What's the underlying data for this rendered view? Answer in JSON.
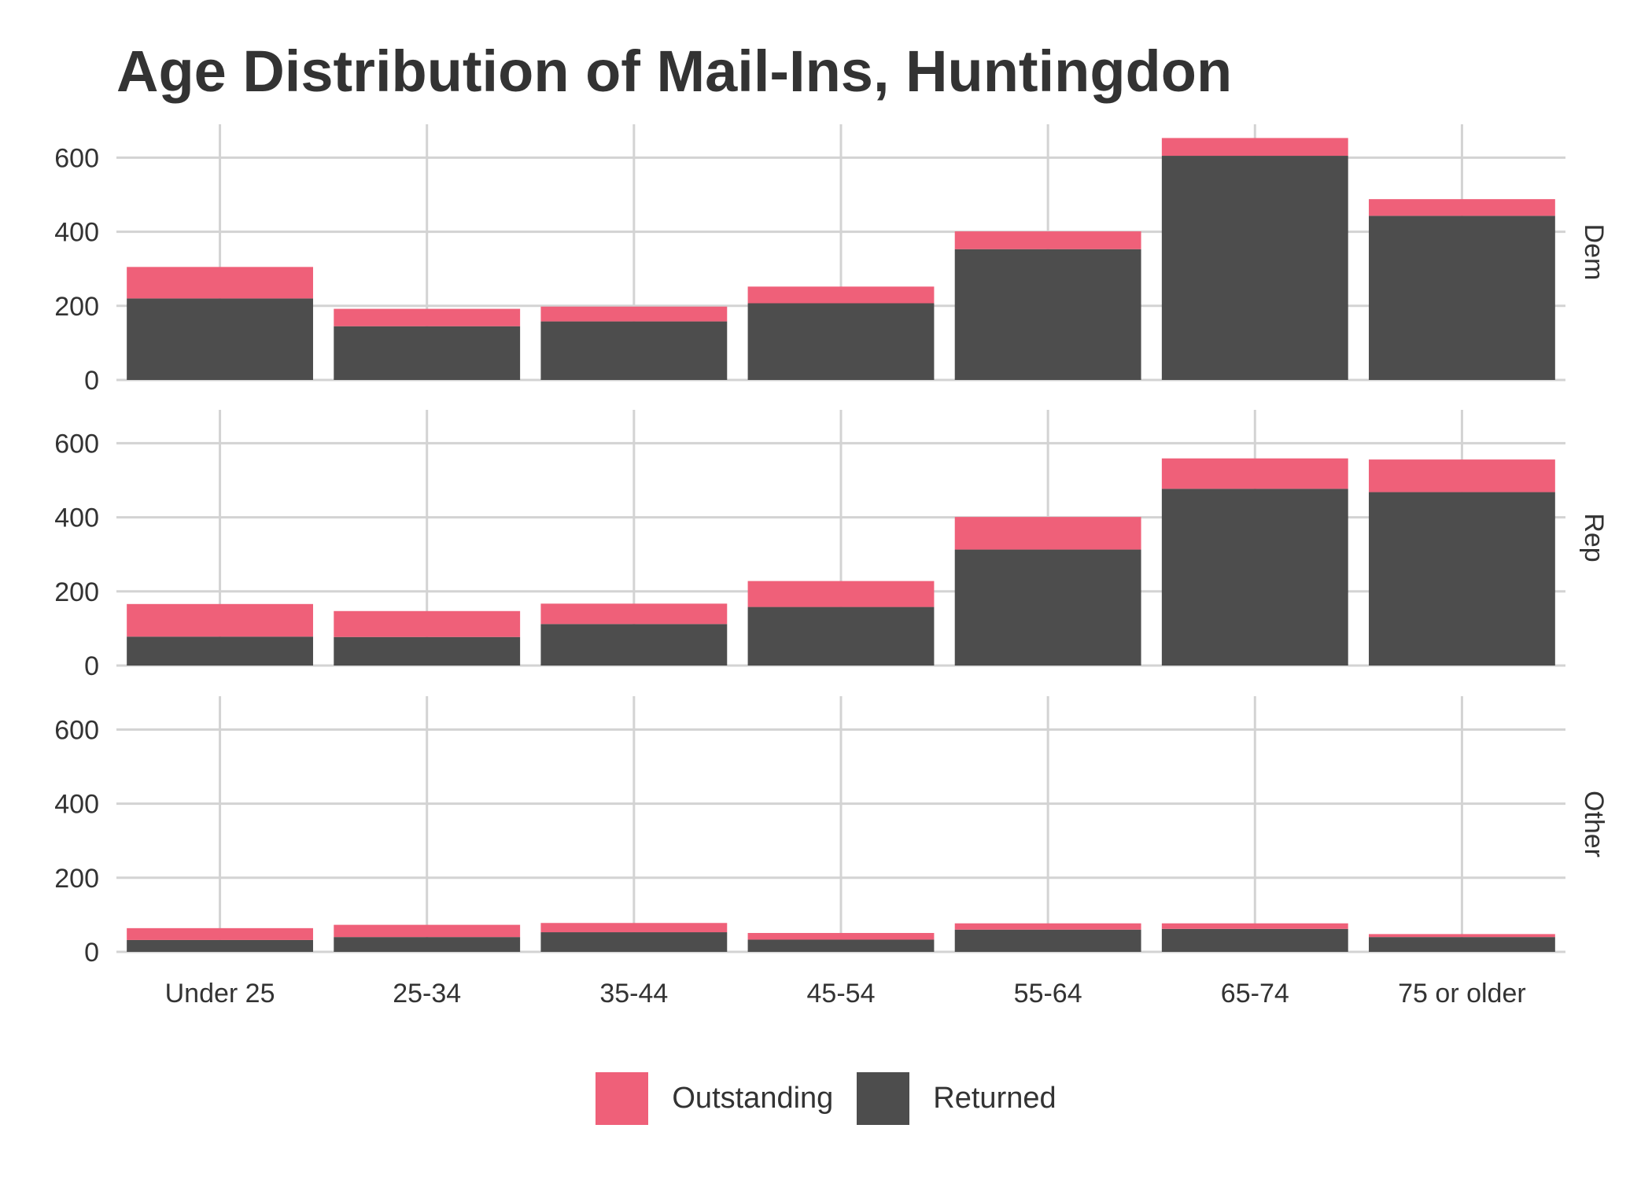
{
  "chart_data": {
    "type": "bar",
    "stacked": true,
    "title": "Age Distribution of Mail-Ins, Huntingdon",
    "xlabel": "",
    "ylabel": "",
    "ylim": [
      0,
      690
    ],
    "yticks": [
      0,
      200,
      400,
      600
    ],
    "grid": true,
    "legend_position": "bottom",
    "categories": [
      "Under 25",
      "25-34",
      "35-44",
      "45-54",
      "55-64",
      "65-74",
      "75 or older"
    ],
    "colors": {
      "Outstanding": "#EF6079",
      "Returned": "#4D4D4D"
    },
    "legend": [
      {
        "name": "Outstanding",
        "color": "#EF6079"
      },
      {
        "name": "Returned",
        "color": "#4D4D4D"
      }
    ],
    "panels": [
      {
        "facet": "Dem",
        "series": [
          {
            "name": "Returned",
            "values": [
              220,
              145,
              158,
              207,
              353,
              605,
              443
            ]
          },
          {
            "name": "Outstanding",
            "values": [
              85,
              47,
              40,
              45,
              48,
              48,
              45
            ]
          }
        ]
      },
      {
        "facet": "Rep",
        "series": [
          {
            "name": "Returned",
            "values": [
              78,
              77,
              112,
              158,
              313,
              477,
              468
            ]
          },
          {
            "name": "Outstanding",
            "values": [
              88,
              70,
              55,
              70,
              88,
              82,
              88
            ]
          }
        ]
      },
      {
        "facet": "Other",
        "series": [
          {
            "name": "Returned",
            "values": [
              32,
              40,
              53,
              33,
              60,
              62,
              40
            ]
          },
          {
            "name": "Outstanding",
            "values": [
              32,
              33,
              25,
              18,
              17,
              15,
              8
            ]
          }
        ]
      }
    ]
  }
}
